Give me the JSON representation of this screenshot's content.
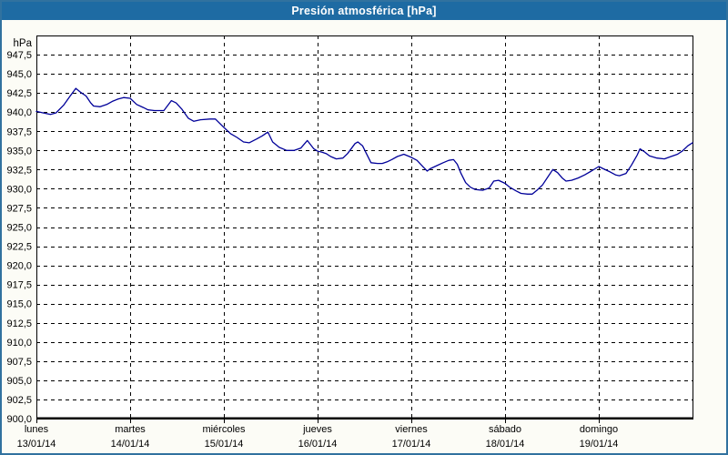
{
  "window": {
    "title": "Presión atmosférica [hPa]"
  },
  "colors": {
    "titlebar": "#1e6ba3",
    "frame": "#31729f",
    "background": "#fcfcf6",
    "plot_background": "#ffffff",
    "grid": "#000000",
    "text": "#000000",
    "line": "#000099"
  },
  "chart_data": {
    "type": "line",
    "title": "Presión atmosférica [hPa]",
    "ylabel": "hPa",
    "ylim": [
      900,
      950
    ],
    "y_tick_step": 2.5,
    "xlim_days": [
      0,
      7
    ],
    "grid": "dashed",
    "legend": "none",
    "y_ticks": [
      {
        "value": 947.5,
        "label": "947,5"
      },
      {
        "value": 945.0,
        "label": "945,0"
      },
      {
        "value": 942.5,
        "label": "942,5"
      },
      {
        "value": 940.0,
        "label": "940,0"
      },
      {
        "value": 937.5,
        "label": "937,5"
      },
      {
        "value": 935.0,
        "label": "935,0"
      },
      {
        "value": 932.5,
        "label": "932,5"
      },
      {
        "value": 930.0,
        "label": "930,0"
      },
      {
        "value": 927.5,
        "label": "927,5"
      },
      {
        "value": 925.0,
        "label": "925,0"
      },
      {
        "value": 922.5,
        "label": "922,5"
      },
      {
        "value": 920.0,
        "label": "920,0"
      },
      {
        "value": 917.5,
        "label": "917,5"
      },
      {
        "value": 915.0,
        "label": "915,0"
      },
      {
        "value": 912.5,
        "label": "912,5"
      },
      {
        "value": 910.0,
        "label": "910,0"
      },
      {
        "value": 907.5,
        "label": "907,5"
      },
      {
        "value": 905.0,
        "label": "905,0"
      },
      {
        "value": 902.5,
        "label": "902,5"
      },
      {
        "value": 900.0,
        "label": "900,0"
      }
    ],
    "x_ticks": [
      {
        "day": "lunes",
        "date": "13/01/14"
      },
      {
        "day": "martes",
        "date": "14/01/14"
      },
      {
        "day": "miércoles",
        "date": "15/01/14"
      },
      {
        "day": "jueves",
        "date": "16/01/14"
      },
      {
        "day": "viernes",
        "date": "17/01/14"
      },
      {
        "day": "sábado",
        "date": "18/01/14"
      },
      {
        "day": "domingo",
        "date": "19/01/14"
      }
    ],
    "series": [
      {
        "name": "Presión atmosférica",
        "unit": "hPa",
        "color": "#000099",
        "points": [
          [
            0.0,
            940.1
          ],
          [
            0.07,
            939.9
          ],
          [
            0.15,
            939.7
          ],
          [
            0.21,
            939.9
          ],
          [
            0.29,
            940.9
          ],
          [
            0.36,
            942.1
          ],
          [
            0.42,
            943.1
          ],
          [
            0.47,
            942.6
          ],
          [
            0.53,
            942.1
          ],
          [
            0.58,
            941.2
          ],
          [
            0.61,
            940.8
          ],
          [
            0.68,
            940.7
          ],
          [
            0.75,
            941.0
          ],
          [
            0.81,
            941.4
          ],
          [
            0.87,
            941.7
          ],
          [
            0.93,
            941.9
          ],
          [
            1.0,
            941.8
          ],
          [
            1.07,
            941.0
          ],
          [
            1.14,
            940.6
          ],
          [
            1.19,
            940.3
          ],
          [
            1.26,
            940.2
          ],
          [
            1.36,
            940.2
          ],
          [
            1.44,
            941.5
          ],
          [
            1.49,
            941.2
          ],
          [
            1.55,
            940.4
          ],
          [
            1.62,
            939.2
          ],
          [
            1.68,
            938.8
          ],
          [
            1.75,
            939.0
          ],
          [
            1.85,
            939.1
          ],
          [
            1.91,
            939.1
          ],
          [
            2.0,
            938.0
          ],
          [
            2.07,
            937.2
          ],
          [
            2.14,
            936.7
          ],
          [
            2.21,
            936.1
          ],
          [
            2.27,
            936.0
          ],
          [
            2.35,
            936.5
          ],
          [
            2.41,
            936.9
          ],
          [
            2.47,
            937.4
          ],
          [
            2.52,
            936.1
          ],
          [
            2.59,
            935.4
          ],
          [
            2.67,
            935.0
          ],
          [
            2.75,
            935.0
          ],
          [
            2.82,
            935.3
          ],
          [
            2.89,
            936.3
          ],
          [
            2.96,
            935.2
          ],
          [
            3.0,
            934.9
          ],
          [
            3.04,
            934.8
          ],
          [
            3.09,
            934.6
          ],
          [
            3.14,
            934.2
          ],
          [
            3.2,
            933.9
          ],
          [
            3.27,
            934.0
          ],
          [
            3.32,
            934.6
          ],
          [
            3.4,
            935.9
          ],
          [
            3.43,
            936.1
          ],
          [
            3.48,
            935.6
          ],
          [
            3.52,
            934.6
          ],
          [
            3.57,
            933.4
          ],
          [
            3.64,
            933.3
          ],
          [
            3.69,
            933.3
          ],
          [
            3.74,
            933.5
          ],
          [
            3.79,
            933.8
          ],
          [
            3.85,
            934.2
          ],
          [
            3.92,
            934.5
          ],
          [
            4.0,
            934.1
          ],
          [
            4.06,
            933.7
          ],
          [
            4.13,
            932.8
          ],
          [
            4.17,
            932.3
          ],
          [
            4.2,
            932.6
          ],
          [
            4.27,
            933.0
          ],
          [
            4.34,
            933.4
          ],
          [
            4.4,
            933.7
          ],
          [
            4.45,
            933.8
          ],
          [
            4.49,
            933.2
          ],
          [
            4.53,
            932.0
          ],
          [
            4.58,
            930.8
          ],
          [
            4.63,
            930.2
          ],
          [
            4.68,
            929.9
          ],
          [
            4.76,
            929.8
          ],
          [
            4.83,
            930.1
          ],
          [
            4.88,
            931.0
          ],
          [
            4.93,
            931.1
          ],
          [
            5.0,
            930.7
          ],
          [
            5.05,
            930.2
          ],
          [
            5.12,
            929.7
          ],
          [
            5.17,
            929.4
          ],
          [
            5.24,
            929.3
          ],
          [
            5.29,
            929.3
          ],
          [
            5.34,
            929.8
          ],
          [
            5.4,
            930.5
          ],
          [
            5.46,
            931.6
          ],
          [
            5.51,
            932.5
          ],
          [
            5.56,
            932.1
          ],
          [
            5.61,
            931.4
          ],
          [
            5.65,
            931.0
          ],
          [
            5.71,
            931.1
          ],
          [
            5.78,
            931.4
          ],
          [
            5.85,
            931.8
          ],
          [
            5.92,
            932.3
          ],
          [
            6.0,
            932.9
          ],
          [
            6.05,
            932.6
          ],
          [
            6.12,
            932.2
          ],
          [
            6.18,
            931.8
          ],
          [
            6.22,
            931.7
          ],
          [
            6.29,
            932.0
          ],
          [
            6.35,
            933.1
          ],
          [
            6.41,
            934.4
          ],
          [
            6.44,
            935.2
          ],
          [
            6.49,
            934.8
          ],
          [
            6.54,
            934.3
          ],
          [
            6.62,
            934.0
          ],
          [
            6.7,
            933.9
          ],
          [
            6.77,
            934.2
          ],
          [
            6.84,
            934.5
          ],
          [
            6.89,
            934.9
          ],
          [
            6.95,
            935.6
          ],
          [
            7.0,
            936.0
          ]
        ]
      }
    ]
  }
}
